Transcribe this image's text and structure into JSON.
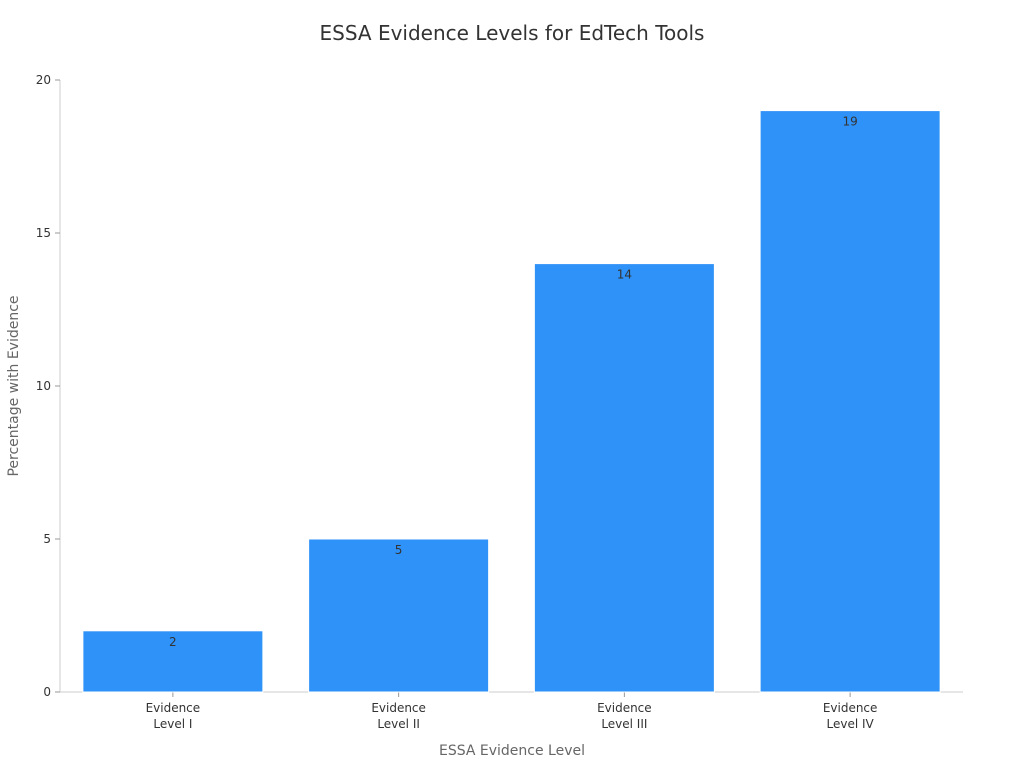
{
  "chart_data": {
    "type": "bar",
    "title": "ESSA Evidence Levels for EdTech Tools",
    "xlabel": "ESSA Evidence Level",
    "ylabel": "Percentage with Evidence",
    "categories": [
      [
        "Evidence",
        "Level I"
      ],
      [
        "Evidence",
        "Level II"
      ],
      [
        "Evidence",
        "Level III"
      ],
      [
        "Evidence",
        "Level IV"
      ]
    ],
    "values": [
      2,
      5,
      14,
      19
    ],
    "ylim": [
      0,
      20
    ],
    "yticks": [
      0,
      5,
      10,
      15,
      20
    ],
    "grid": false,
    "legend": "none",
    "bar_color": "#2f92f8"
  }
}
